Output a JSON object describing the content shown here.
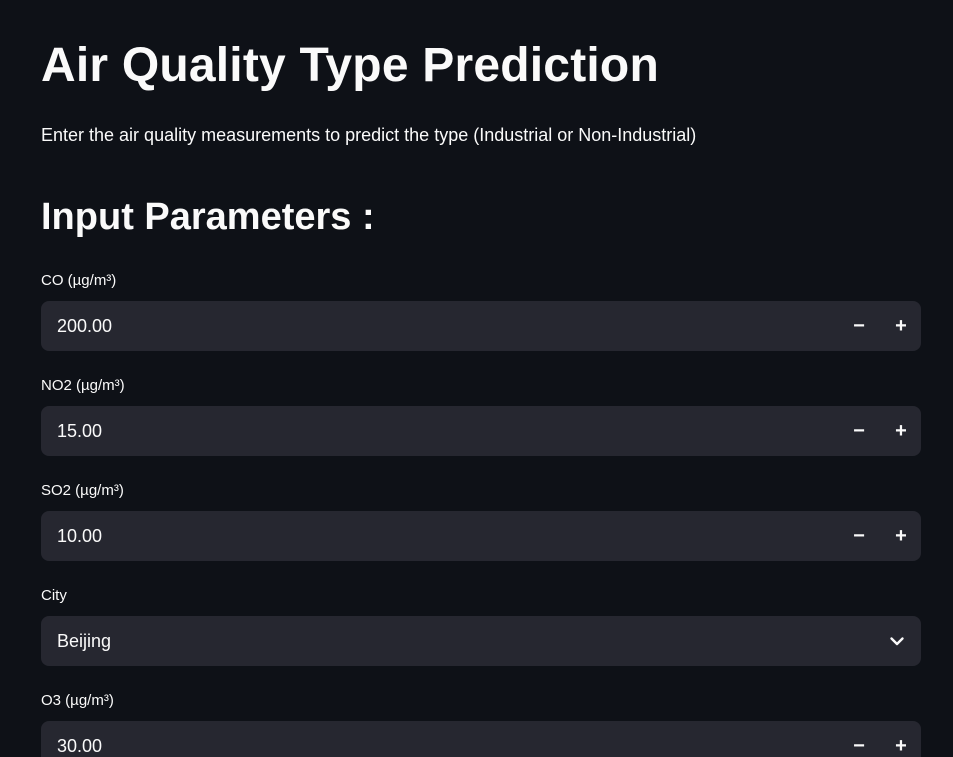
{
  "header": {
    "title": "Air Quality Type Prediction",
    "subtitle": "Enter the air quality measurements to predict the type (Industrial or Non-Industrial)"
  },
  "section": {
    "heading": "Input Parameters :"
  },
  "fields": {
    "co": {
      "label": "CO (µg/m³)",
      "value": "200.00"
    },
    "no2": {
      "label": "NO2 (µg/m³)",
      "value": "15.00"
    },
    "so2": {
      "label": "SO2 (µg/m³)",
      "value": "10.00"
    },
    "city": {
      "label": "City",
      "value": "Beijing"
    },
    "o3": {
      "label": "O3 (µg/m³)",
      "value": "30.00"
    }
  },
  "controls": {
    "minus": "−",
    "plus": "+"
  },
  "icons": {
    "dropdown": "chevron-down-icon"
  },
  "colors": {
    "background": "#0e1117",
    "input_background": "#262730",
    "text": "#fafafa"
  }
}
